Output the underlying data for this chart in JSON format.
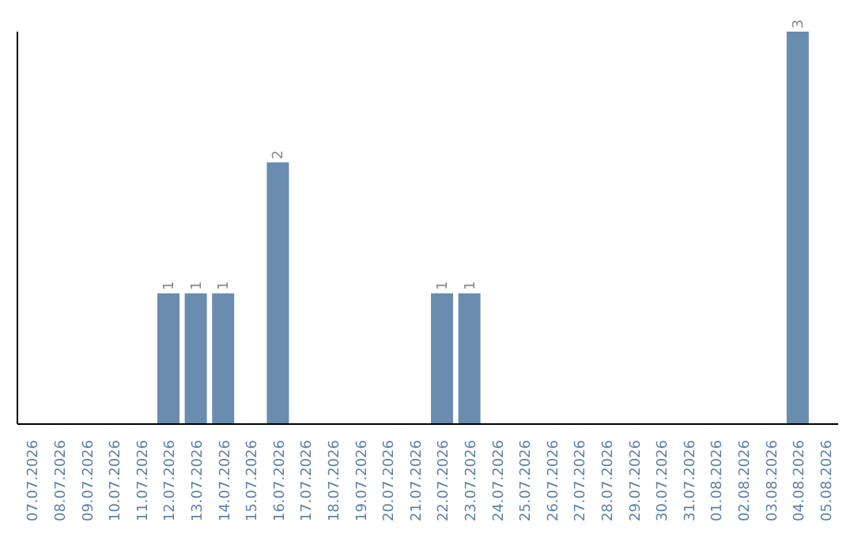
{
  "chart_data": {
    "type": "bar",
    "categories": [
      "07.07.2026",
      "08.07.2026",
      "09.07.2026",
      "10.07.2026",
      "11.07.2026",
      "12.07.2026",
      "13.07.2026",
      "14.07.2026",
      "15.07.2026",
      "16.07.2026",
      "17.07.2026",
      "18.07.2026",
      "19.07.2026",
      "20.07.2026",
      "21.07.2026",
      "22.07.2026",
      "23.07.2026",
      "24.07.2026",
      "25.07.2026",
      "26.07.2026",
      "27.07.2026",
      "28.07.2026",
      "29.07.2026",
      "30.07.2026",
      "31.07.2026",
      "01.08.2026",
      "02.08.2026",
      "03.08.2026",
      "04.08.2026",
      "05.08.2026"
    ],
    "values": [
      0,
      0,
      0,
      0,
      0,
      1,
      1,
      1,
      0,
      2,
      0,
      0,
      0,
      0,
      0,
      1,
      1,
      0,
      0,
      0,
      0,
      0,
      0,
      0,
      0,
      0,
      0,
      0,
      3,
      0
    ],
    "value_labels": [
      null,
      null,
      null,
      null,
      null,
      "1",
      "1",
      "1",
      null,
      "2",
      null,
      null,
      null,
      null,
      null,
      "1",
      "1",
      null,
      null,
      null,
      null,
      null,
      null,
      null,
      null,
      null,
      null,
      null,
      "3",
      null
    ],
    "color": "#6a8caf",
    "ylim": [
      0,
      3
    ],
    "tick_labels": "x",
    "grid": false
  }
}
